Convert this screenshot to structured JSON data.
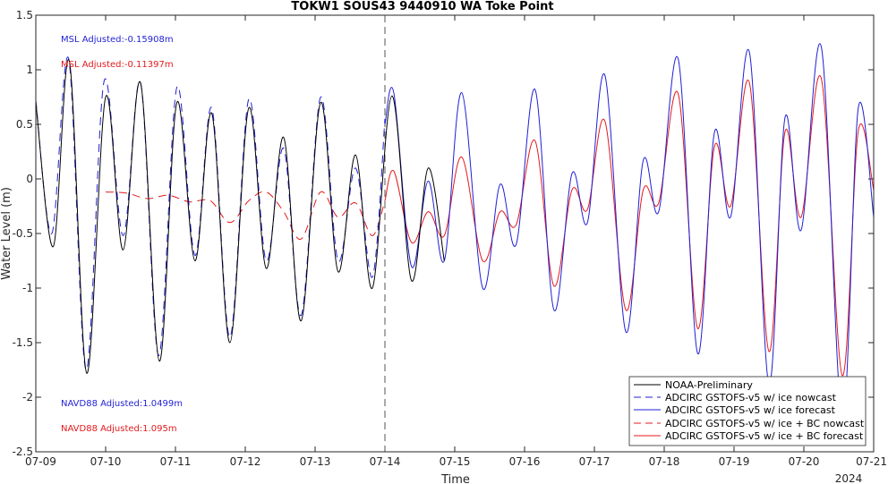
{
  "chart_data": {
    "type": "line",
    "title": "TOKW1 SOUS43 9440910 WA Toke Point",
    "xlabel": "Time",
    "ylabel": "Water Level (m)",
    "x_tick_labels": [
      "07-09",
      "07-10",
      "07-11",
      "07-12",
      "07-13",
      "07-14",
      "07-15",
      "07-16",
      "07-17",
      "07-18",
      "07-19",
      "07-20",
      "07-21"
    ],
    "x_year_label": "2024",
    "xlim": [
      0,
      12
    ],
    "ylim": [
      -2.5,
      1.5
    ],
    "y_ticks": [
      -2.5,
      -2,
      -1.5,
      -1,
      -0.5,
      0,
      0.5,
      1,
      1.5
    ],
    "y_tick_labels": [
      "-2.5",
      "-2",
      "-1.5",
      "-1",
      "-0.5",
      "0",
      "0.5",
      "1",
      "1.5"
    ],
    "nowcast_forecast_boundary": 5,
    "annotations": {
      "msl_blue": "MSL Adjusted:-0.15908m",
      "msl_red": "MSL Adjusted:-0.11397m",
      "navd_blue": "NAVD88 Adjusted:1.0499m",
      "navd_red": "NAVD88 Adjusted:1.095m"
    },
    "colors": {
      "black": "#000000",
      "blue": "#1f1fd6",
      "red": "#e41a1c",
      "boundary": "#555555"
    },
    "legend_position": "bottom-right",
    "series": [
      {
        "name": "NOAA-Preliminary",
        "color": "#000000",
        "style": "solid",
        "points": [
          [
            0.0,
            0.7
          ],
          [
            0.25,
            -0.62
          ],
          [
            0.48,
            1.08
          ],
          [
            0.73,
            -1.78
          ],
          [
            1.0,
            0.75
          ],
          [
            1.25,
            -0.65
          ],
          [
            1.5,
            0.88
          ],
          [
            1.77,
            -1.67
          ],
          [
            2.02,
            0.7
          ],
          [
            2.28,
            -0.75
          ],
          [
            2.52,
            0.6
          ],
          [
            2.78,
            -1.5
          ],
          [
            3.05,
            0.65
          ],
          [
            3.3,
            -0.82
          ],
          [
            3.55,
            0.38
          ],
          [
            3.8,
            -1.3
          ],
          [
            4.08,
            0.7
          ],
          [
            4.33,
            -0.85
          ],
          [
            4.58,
            0.22
          ],
          [
            4.82,
            -1.0
          ],
          [
            5.1,
            0.76
          ],
          [
            5.38,
            -0.93
          ],
          [
            5.62,
            0.1
          ],
          [
            5.85,
            -0.75
          ]
        ]
      },
      {
        "name": "ADCIRC GSTOFS-v5 w/ ice nowcast",
        "color": "#1f1fd6",
        "style": "dashed",
        "points": [
          [
            0.0,
            0.72
          ],
          [
            0.23,
            -0.5
          ],
          [
            0.47,
            1.1
          ],
          [
            0.72,
            -1.75
          ],
          [
            0.98,
            0.9
          ],
          [
            1.25,
            -0.52
          ],
          [
            1.5,
            0.88
          ],
          [
            1.76,
            -1.62
          ],
          [
            2.02,
            0.84
          ],
          [
            2.28,
            -0.7
          ],
          [
            2.52,
            0.65
          ],
          [
            2.78,
            -1.45
          ],
          [
            3.05,
            0.73
          ],
          [
            3.3,
            -0.75
          ],
          [
            3.55,
            0.28
          ],
          [
            3.8,
            -1.25
          ],
          [
            4.08,
            0.75
          ],
          [
            4.33,
            -0.75
          ],
          [
            4.58,
            0.1
          ],
          [
            4.82,
            -0.9
          ],
          [
            5.0,
            0.55
          ]
        ]
      },
      {
        "name": "ADCIRC GSTOFS-v5 w/ ice forecast",
        "color": "#1f1fd6",
        "style": "solid",
        "points": [
          [
            5.0,
            0.5
          ],
          [
            5.13,
            0.78
          ],
          [
            5.38,
            -0.8
          ],
          [
            5.62,
            -0.02
          ],
          [
            5.85,
            -0.75
          ],
          [
            6.1,
            0.79
          ],
          [
            6.4,
            -1.0
          ],
          [
            6.65,
            -0.05
          ],
          [
            6.88,
            -0.6
          ],
          [
            7.15,
            0.82
          ],
          [
            7.42,
            -1.2
          ],
          [
            7.68,
            0.05
          ],
          [
            7.9,
            -0.4
          ],
          [
            8.15,
            0.95
          ],
          [
            8.45,
            -1.4
          ],
          [
            8.7,
            0.17
          ],
          [
            8.92,
            -0.3
          ],
          [
            9.2,
            1.1
          ],
          [
            9.48,
            -1.6
          ],
          [
            9.72,
            0.43
          ],
          [
            9.95,
            -0.35
          ],
          [
            10.22,
            1.16
          ],
          [
            10.5,
            -1.88
          ],
          [
            10.73,
            0.56
          ],
          [
            10.96,
            -0.47
          ],
          [
            11.25,
            1.21
          ],
          [
            11.55,
            -2.2
          ],
          [
            11.78,
            0.65
          ],
          [
            12.0,
            -0.35
          ]
        ]
      },
      {
        "name": "ADCIRC GSTOFS-v5 w/ ice + BC nowcast",
        "color": "#e41a1c",
        "style": "dashed",
        "points": [
          [
            1.0,
            -0.12
          ],
          [
            1.3,
            -0.13
          ],
          [
            1.6,
            -0.18
          ],
          [
            1.9,
            -0.15
          ],
          [
            2.2,
            -0.21
          ],
          [
            2.5,
            -0.2
          ],
          [
            2.78,
            -0.4
          ],
          [
            3.05,
            -0.2
          ],
          [
            3.3,
            -0.12
          ],
          [
            3.55,
            -0.3
          ],
          [
            3.8,
            -0.55
          ],
          [
            4.08,
            -0.12
          ],
          [
            4.33,
            -0.35
          ],
          [
            4.58,
            -0.22
          ],
          [
            4.82,
            -0.52
          ],
          [
            5.0,
            -0.2
          ]
        ]
      },
      {
        "name": "ADCIRC GSTOFS-v5 w/ ice + BC forecast",
        "color": "#e41a1c",
        "style": "solid",
        "points": [
          [
            5.0,
            -0.2
          ],
          [
            5.13,
            0.07
          ],
          [
            5.38,
            -0.58
          ],
          [
            5.62,
            -0.3
          ],
          [
            5.85,
            -0.52
          ],
          [
            6.1,
            0.2
          ],
          [
            6.4,
            -0.75
          ],
          [
            6.65,
            -0.3
          ],
          [
            6.88,
            -0.42
          ],
          [
            7.15,
            0.35
          ],
          [
            7.42,
            -0.98
          ],
          [
            7.68,
            -0.1
          ],
          [
            7.9,
            -0.28
          ],
          [
            8.15,
            0.53
          ],
          [
            8.45,
            -1.2
          ],
          [
            8.7,
            -0.1
          ],
          [
            8.92,
            -0.22
          ],
          [
            9.2,
            0.78
          ],
          [
            9.48,
            -1.37
          ],
          [
            9.72,
            0.3
          ],
          [
            9.95,
            -0.25
          ],
          [
            10.22,
            0.88
          ],
          [
            10.5,
            -1.58
          ],
          [
            10.73,
            0.43
          ],
          [
            10.96,
            -0.35
          ],
          [
            11.25,
            0.92
          ],
          [
            11.55,
            -1.8
          ],
          [
            11.78,
            0.44
          ],
          [
            12.0,
            -0.1
          ]
        ]
      }
    ]
  }
}
